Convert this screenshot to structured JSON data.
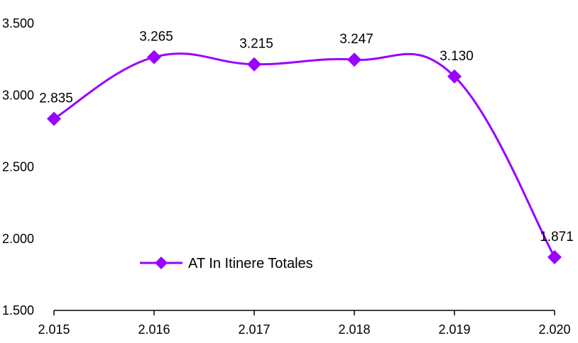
{
  "chart_data": {
    "type": "line",
    "title": "",
    "xlabel": "",
    "ylabel": "",
    "x": [
      "2.015",
      "2.016",
      "2.017",
      "2.018",
      "2.019",
      "2.020"
    ],
    "series": [
      {
        "name": "AT In Itinere Totales",
        "values": [
          2835,
          3265,
          3215,
          3247,
          3130,
          1871
        ],
        "value_labels": [
          "2.835",
          "3.265",
          "3.215",
          "3.247",
          "3.130",
          "1.871"
        ],
        "color": "#9900ff",
        "marker": "diamond",
        "smooth": true
      }
    ],
    "ylim": [
      1500,
      3500
    ],
    "yticks": [
      1500,
      2000,
      2500,
      3000,
      3500
    ],
    "ytick_labels": [
      "1.500",
      "2.000",
      "2.500",
      "3.000",
      "3.500"
    ],
    "grid": false,
    "legend_position": "center-left"
  }
}
